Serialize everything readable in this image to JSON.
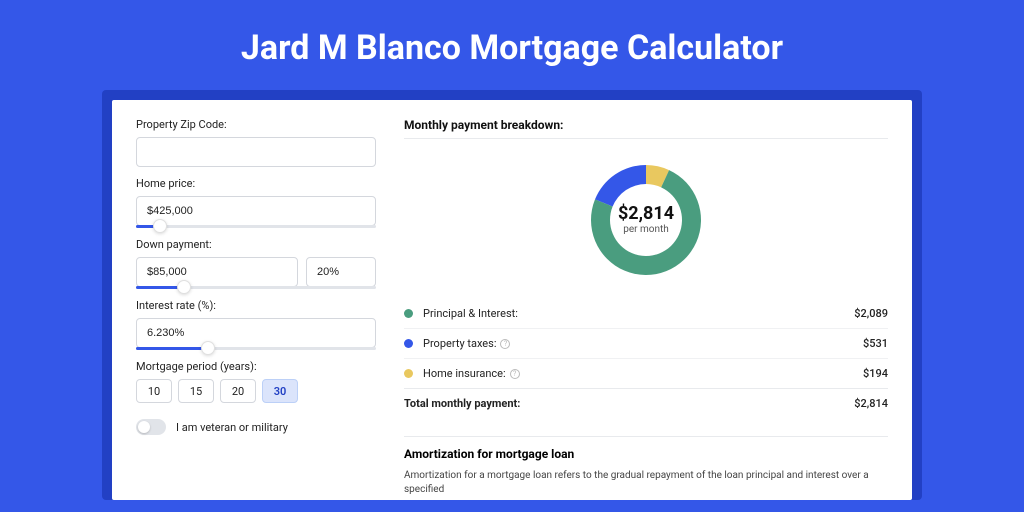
{
  "page": {
    "title": "Jard M Blanco Mortgage Calculator",
    "background_color": "#3457e8",
    "card_background": "#2240c4",
    "inner_background": "#ffffff"
  },
  "form": {
    "zip": {
      "label": "Property Zip Code:",
      "value": ""
    },
    "home_price": {
      "label": "Home price:",
      "value": "$425,000",
      "slider_pct": 10
    },
    "down_payment": {
      "label": "Down payment:",
      "amount": "$85,000",
      "percent": "20%",
      "slider_pct": 20
    },
    "interest_rate": {
      "label": "Interest rate (%):",
      "value": "6.230%",
      "slider_pct": 30
    },
    "mortgage_period": {
      "label": "Mortgage period (years):",
      "options": [
        "10",
        "15",
        "20",
        "30"
      ],
      "selected_index": 3
    },
    "veteran": {
      "label": "I am veteran or military",
      "enabled": false
    }
  },
  "breakdown": {
    "header": "Monthly payment breakdown:",
    "donut": {
      "center_amount": "$2,814",
      "center_sub": "per month",
      "type": "donut",
      "slices": [
        {
          "label": "Principal & Interest",
          "value": 2089,
          "color": "#4a9d7f",
          "pct": 0.742
        },
        {
          "label": "Property taxes",
          "value": 531,
          "color": "#3457e8",
          "pct": 0.189
        },
        {
          "label": "Home insurance",
          "value": 194,
          "color": "#e9c85f",
          "pct": 0.069
        }
      ],
      "outer_r": 55,
      "inner_r": 36,
      "background": "#ffffff"
    },
    "rows": [
      {
        "dot": "#4a9d7f",
        "label": "Principal & Interest:",
        "value": "$2,089",
        "info": false
      },
      {
        "dot": "#3457e8",
        "label": "Property taxes:",
        "value": "$531",
        "info": true
      },
      {
        "dot": "#e9c85f",
        "label": "Home insurance:",
        "value": "$194",
        "info": true
      }
    ],
    "total": {
      "label": "Total monthly payment:",
      "value": "$2,814"
    }
  },
  "amortization": {
    "title": "Amortization for mortgage loan",
    "text": "Amortization for a mortgage loan refers to the gradual repayment of the loan principal and interest over a specified"
  }
}
